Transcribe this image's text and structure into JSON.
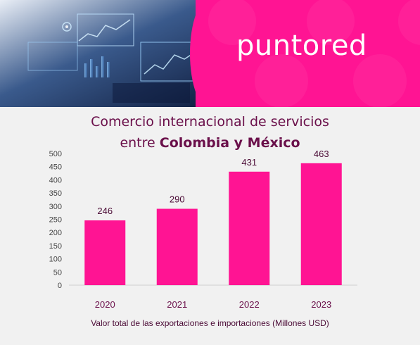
{
  "banner": {
    "brand": "puntored",
    "colors": {
      "accent": "#ff1493",
      "dark": "#18254a"
    }
  },
  "chart_data": {
    "type": "bar",
    "title_line1": "Comercio internacional de servicios",
    "title_line2_prefix": "entre ",
    "title_line2_bold": "Colombia y México",
    "xlabel": "Valor total de las exportaciones e importaciones (Millones USD)",
    "ylabel": "",
    "categories": [
      "2020",
      "2021",
      "2022",
      "2023"
    ],
    "values": [
      246,
      290,
      431,
      463
    ],
    "ylim": [
      0,
      500
    ],
    "yticks": [
      0,
      50,
      100,
      150,
      200,
      250,
      300,
      350,
      400,
      450,
      500
    ],
    "bar_color": "#ff1493",
    "grid": false,
    "legend": "none"
  }
}
